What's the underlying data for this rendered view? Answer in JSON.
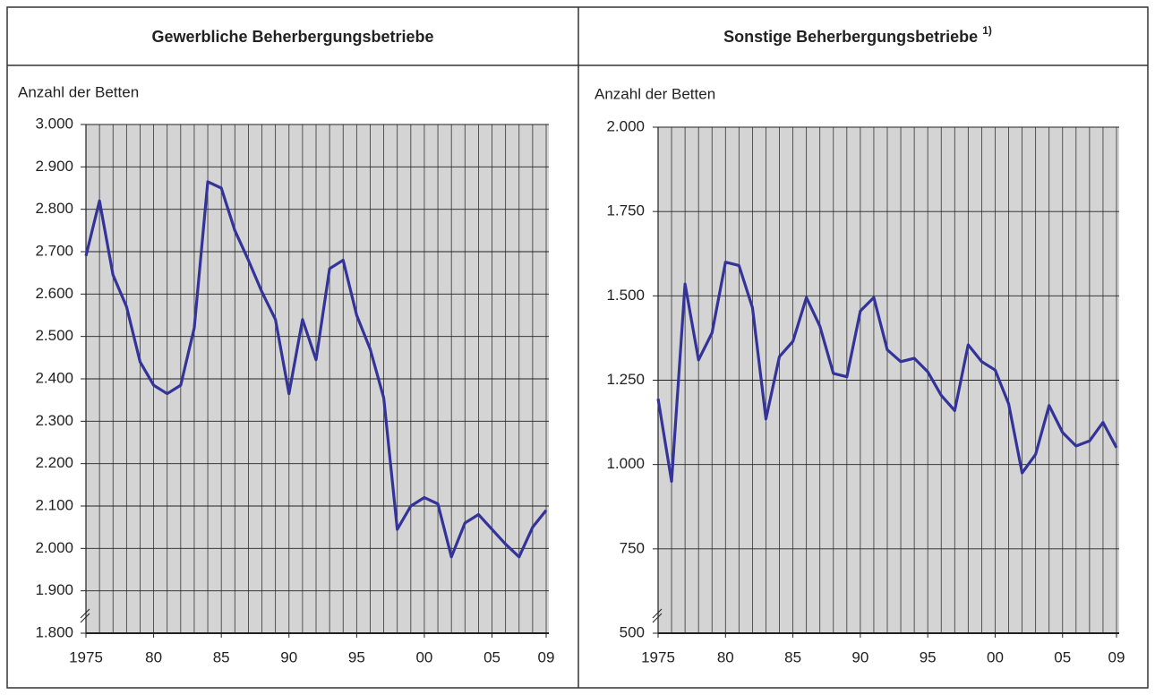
{
  "chart_data": [
    {
      "type": "line",
      "title": "Gewerbliche Beherbergungsbetriebe",
      "y_label": "Anzahl der Betten",
      "x": [
        1975,
        1976,
        1977,
        1978,
        1979,
        1980,
        1981,
        1982,
        1983,
        1984,
        1985,
        1986,
        1987,
        1988,
        1989,
        1990,
        1991,
        1992,
        1993,
        1994,
        1995,
        1996,
        1997,
        1998,
        1999,
        2000,
        2001,
        2002,
        2003,
        2004,
        2005,
        2006,
        2007,
        2008,
        2009
      ],
      "series": [
        {
          "color": "#333399",
          "values": [
            2690,
            2820,
            2645,
            2570,
            2440,
            2385,
            2365,
            2385,
            2520,
            2865,
            2850,
            2750,
            2680,
            2605,
            2540,
            2365,
            2540,
            2445,
            2660,
            2680,
            2550,
            2470,
            2355,
            2045,
            2100,
            2120,
            2105,
            1980,
            2060,
            2080,
            2045,
            2010,
            1980,
            2050,
            2090
          ]
        }
      ],
      "xlim": [
        1975,
        2009
      ],
      "xticks": [
        1975,
        {
          "value": 1980,
          "label": "80"
        },
        {
          "value": 1985,
          "label": "85"
        },
        {
          "value": 1990,
          "label": "90"
        },
        {
          "value": 1995,
          "label": "95"
        },
        {
          "value": 2000,
          "label": "00"
        },
        {
          "value": 2005,
          "label": "05"
        },
        {
          "value": 2009,
          "label": "09"
        }
      ],
      "ylim": [
        1800,
        3000
      ],
      "yticks": [
        {
          "value": 1800,
          "label": "1.800"
        },
        {
          "value": 1900,
          "label": "1.900"
        },
        {
          "value": 2000,
          "label": "2.000"
        },
        {
          "value": 2100,
          "label": "2.100"
        },
        {
          "value": 2200,
          "label": "2.200"
        },
        {
          "value": 2300,
          "label": "2.300"
        },
        {
          "value": 2400,
          "label": "2.400"
        },
        {
          "value": 2500,
          "label": "2.500"
        },
        {
          "value": 2600,
          "label": "2.600"
        },
        {
          "value": 2700,
          "label": "2.700"
        },
        {
          "value": 2800,
          "label": "2.800"
        },
        {
          "value": 2900,
          "label": "2.900"
        },
        {
          "value": 3000,
          "label": "3.000"
        }
      ],
      "grid": true
    },
    {
      "type": "line",
      "title": "Sonstige Beherbergungsbetriebe",
      "title_superscript": "1)",
      "y_label": "Anzahl der Betten",
      "x": [
        1975,
        1976,
        1977,
        1978,
        1979,
        1980,
        1981,
        1982,
        1983,
        1984,
        1985,
        1986,
        1987,
        1988,
        1989,
        1990,
        1991,
        1992,
        1993,
        1994,
        1995,
        1996,
        1997,
        1998,
        1999,
        2000,
        2001,
        2002,
        2003,
        2004,
        2005,
        2006,
        2007,
        2008,
        2009
      ],
      "series": [
        {
          "color": "#333399",
          "values": [
            1195,
            950,
            1535,
            1310,
            1390,
            1600,
            1590,
            1465,
            1135,
            1320,
            1365,
            1495,
            1410,
            1270,
            1260,
            1455,
            1495,
            1340,
            1305,
            1315,
            1275,
            1205,
            1160,
            1355,
            1305,
            1280,
            1180,
            975,
            1030,
            1175,
            1095,
            1055,
            1070,
            1125,
            1050
          ]
        }
      ],
      "xlim": [
        1975,
        2009
      ],
      "xticks": [
        1975,
        {
          "value": 1980,
          "label": "80"
        },
        {
          "value": 1985,
          "label": "85"
        },
        {
          "value": 1990,
          "label": "90"
        },
        {
          "value": 1995,
          "label": "95"
        },
        {
          "value": 2000,
          "label": "00"
        },
        {
          "value": 2005,
          "label": "05"
        },
        {
          "value": 2009,
          "label": "09"
        }
      ],
      "ylim": [
        500,
        2000
      ],
      "yticks": [
        500,
        750,
        {
          "value": 1000,
          "label": "1.000"
        },
        {
          "value": 1250,
          "label": "1.250"
        },
        {
          "value": 1500,
          "label": "1.500"
        },
        {
          "value": 1750,
          "label": "1.750"
        },
        {
          "value": 2000,
          "label": "2.000"
        }
      ],
      "grid": true
    }
  ]
}
